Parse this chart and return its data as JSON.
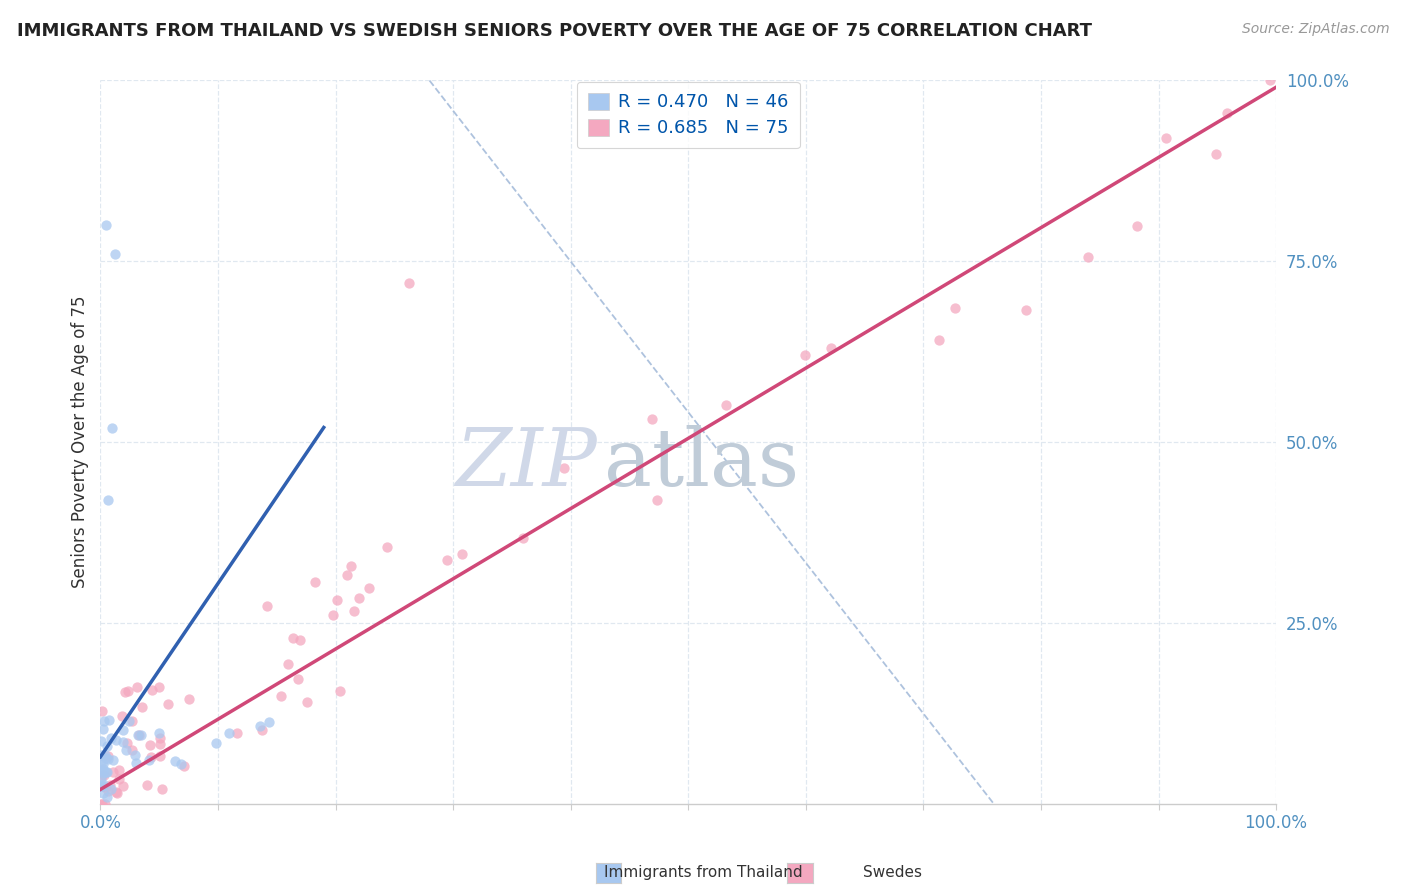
{
  "title": "IMMIGRANTS FROM THAILAND VS SWEDISH SENIORS POVERTY OVER THE AGE OF 75 CORRELATION CHART",
  "source": "Source: ZipAtlas.com",
  "ylabel": "Seniors Poverty Over the Age of 75",
  "legend_label1": "Immigrants from Thailand",
  "legend_label2": "Swedes",
  "R1": 0.47,
  "N1": 46,
  "R2": 0.685,
  "N2": 75,
  "color1": "#A8C8F0",
  "color2": "#F4A8C0",
  "trendline1_color": "#3060B0",
  "trendline2_color": "#D04878",
  "ref_line_color": "#A0B8D8",
  "grid_color": "#E0E8F0",
  "tick_color": "#5090C0",
  "bg_color": "#FFFFFF",
  "watermark_zip_color": "#D0D8E8",
  "watermark_atlas_color": "#C0CCD8",
  "title_fontsize": 13,
  "source_fontsize": 10,
  "tick_fontsize": 12,
  "ylabel_fontsize": 12,
  "legend_fontsize": 13,
  "scatter_size": 55,
  "scatter_alpha": 0.75
}
